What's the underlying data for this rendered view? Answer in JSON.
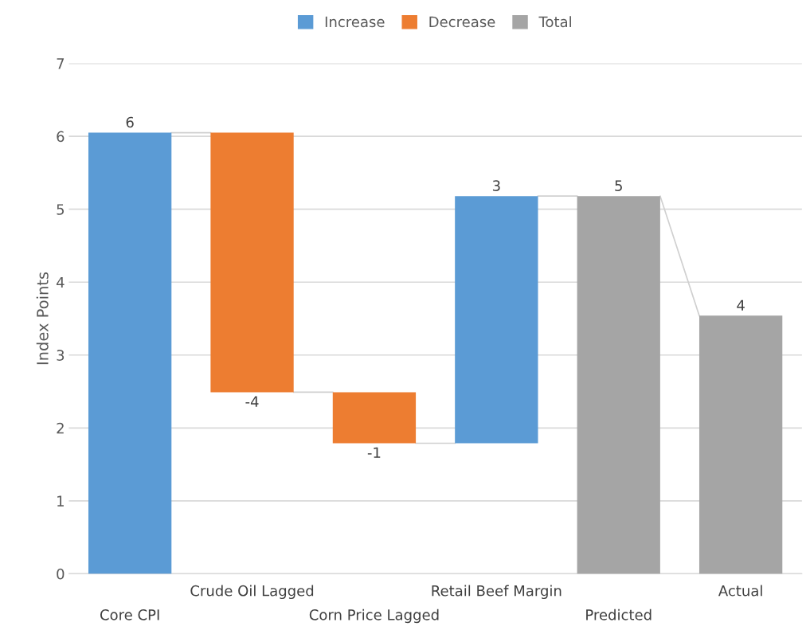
{
  "chart_data": {
    "type": "bar",
    "ylabel": "Index Points",
    "categories": [
      "Core CPI",
      "Crude Oil Lagged",
      "Corn Price Lagged",
      "Retail Beef Margin",
      "Predicted",
      "Actual"
    ],
    "series": [
      {
        "name": "Increase",
        "color": "#5b9bd5",
        "base": [
          0,
          null,
          null,
          1.79,
          null,
          null
        ],
        "values": [
          6.05,
          null,
          null,
          3.39,
          null,
          null
        ],
        "value_labels": [
          "6",
          null,
          null,
          "3",
          null,
          null
        ]
      },
      {
        "name": "Decrease",
        "color": "#ed7d31",
        "base": [
          null,
          6.05,
          2.49,
          null,
          null,
          null
        ],
        "values": [
          null,
          -3.56,
          -0.7,
          null,
          null,
          null
        ],
        "value_labels": [
          null,
          "-4",
          "-1",
          null,
          null,
          null
        ]
      },
      {
        "name": "Total",
        "color": "#a5a5a5",
        "base": [
          null,
          null,
          null,
          null,
          0,
          0
        ],
        "values": [
          null,
          null,
          null,
          null,
          5.18,
          3.54
        ],
        "value_labels": [
          null,
          null,
          null,
          null,
          "5",
          "4"
        ]
      }
    ],
    "ylim": [
      0,
      7
    ],
    "yticks": [
      0,
      1,
      2,
      3,
      4,
      5,
      6,
      7
    ],
    "grid": "y",
    "legend": "top"
  }
}
